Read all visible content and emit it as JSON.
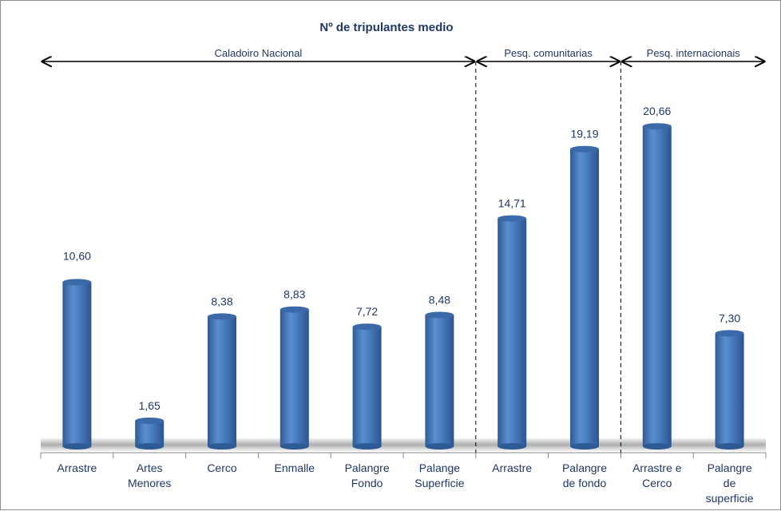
{
  "chart_data": {
    "type": "bar",
    "title": "Nº de tripulantes medio",
    "categories": [
      [
        "Arrastre"
      ],
      [
        "Artes",
        "Menores"
      ],
      [
        "Cerco"
      ],
      [
        "Enmalle"
      ],
      [
        "Palangre",
        "Fondo"
      ],
      [
        "Palange",
        "Superficie"
      ],
      [
        "Arrastre"
      ],
      [
        "Palangre",
        "de fondo"
      ],
      [
        "Arrastre e",
        "Cerco"
      ],
      [
        "Palangre",
        "de",
        "superficie"
      ]
    ],
    "values": [
      10.6,
      1.65,
      8.38,
      8.83,
      7.72,
      8.48,
      14.71,
      19.19,
      20.66,
      7.3
    ],
    "data_labels": [
      "10,60",
      "1,65",
      "8,38",
      "8,83",
      "7,72",
      "8,48",
      "14,71",
      "19,19",
      "20,66",
      "7,30"
    ],
    "groups": [
      {
        "label": "Caladoiro Nacional",
        "from": 0,
        "to": 5
      },
      {
        "label": "Pesq. comunitarias",
        "from": 6,
        "to": 7
      },
      {
        "label": "Pesq. internacionais",
        "from": 8,
        "to": 9
      }
    ],
    "bar_color": "#4f81bd",
    "text_color": "#1f3864",
    "grid": false,
    "y_axis_visible": false
  }
}
